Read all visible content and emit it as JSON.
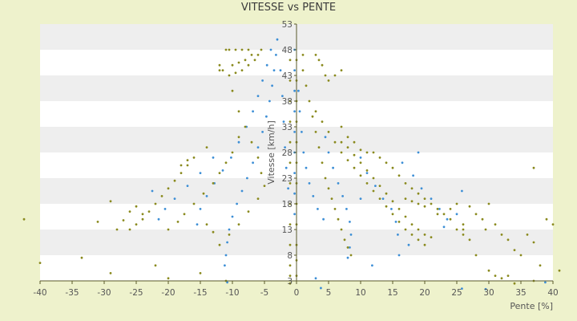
{
  "chart_data": {
    "type": "scatter",
    "title": "VITESSE vs PENTE",
    "xlabel": "Pente [%]",
    "ylabel": "Vitesse [km/h]",
    "xlim": [
      -40,
      40
    ],
    "ylim": [
      3,
      53
    ],
    "x_ticks": [
      -40,
      -35,
      -30,
      -25,
      -20,
      -15,
      -10,
      -5,
      0,
      5,
      10,
      15,
      20,
      25,
      30,
      35,
      40
    ],
    "y_ticks": [
      3,
      8,
      13,
      18,
      23,
      28,
      33,
      38,
      43,
      48,
      53
    ],
    "grid": "horizontal bands",
    "legend": "none",
    "colors": {
      "series_blue": "#3d8fd6",
      "series_olive": "#8a8a1e",
      "band": "#eeeeee",
      "plot_bg": "#ffffff",
      "page_bg": "#eef2cc",
      "axis": "#5a5a2a"
    },
    "series": [
      {
        "color": "#3d8fd6",
        "points": [
          [
            -3,
            50
          ],
          [
            -3.2,
            47
          ],
          [
            -3.5,
            44
          ],
          [
            -3.8,
            41
          ],
          [
            -4.2,
            38
          ],
          [
            -4.7,
            35
          ],
          [
            -5.3,
            32
          ],
          [
            -6,
            29
          ],
          [
            -6.8,
            26
          ],
          [
            -7.7,
            23
          ],
          [
            -8.5,
            20.5
          ],
          [
            -9.3,
            18
          ],
          [
            -10,
            15.5
          ],
          [
            -10.5,
            13
          ],
          [
            -10.8,
            10.5
          ],
          [
            -11,
            8
          ],
          [
            -11.2,
            6
          ],
          [
            -10.8,
            2.7
          ],
          [
            -4,
            48
          ],
          [
            -4.6,
            45
          ],
          [
            -5.3,
            42
          ],
          [
            -6,
            39
          ],
          [
            -6.8,
            36
          ],
          [
            -7.8,
            33
          ],
          [
            -9,
            30
          ],
          [
            -10.2,
            27
          ],
          [
            -11.5,
            24.5
          ],
          [
            -12.8,
            22
          ],
          [
            -14,
            19.5
          ],
          [
            -15,
            17
          ],
          [
            -15.5,
            14
          ],
          [
            -13,
            27
          ],
          [
            -15,
            24
          ],
          [
            -17,
            21.5
          ],
          [
            -19,
            19
          ],
          [
            -20.5,
            17
          ],
          [
            -21.5,
            15
          ],
          [
            -22.5,
            20.5
          ],
          [
            -2.5,
            44
          ],
          [
            -2.2,
            39
          ],
          [
            -2,
            34
          ],
          [
            -1.8,
            29
          ],
          [
            -1.6,
            25
          ],
          [
            -1.3,
            21
          ],
          [
            -0.3,
            48
          ],
          [
            -0.3,
            44
          ],
          [
            -0.3,
            40
          ],
          [
            -0.3,
            36
          ],
          [
            -0.3,
            32
          ],
          [
            -0.3,
            28
          ],
          [
            -0.3,
            24
          ],
          [
            -0.3,
            20
          ],
          [
            -0.3,
            16
          ],
          [
            0.3,
            40
          ],
          [
            0.5,
            36
          ],
          [
            0.8,
            32
          ],
          [
            1.1,
            28
          ],
          [
            1.5,
            25
          ],
          [
            2,
            22
          ],
          [
            2.6,
            19.5
          ],
          [
            3.3,
            17
          ],
          [
            4.2,
            15
          ],
          [
            4.5,
            31
          ],
          [
            5,
            28
          ],
          [
            5.7,
            25
          ],
          [
            6.5,
            22
          ],
          [
            7.2,
            19.5
          ],
          [
            7.8,
            17
          ],
          [
            8.3,
            14.5
          ],
          [
            8.5,
            12
          ],
          [
            8.3,
            9.5
          ],
          [
            8,
            7.5
          ],
          [
            10,
            27
          ],
          [
            11,
            24
          ],
          [
            12.3,
            21.5
          ],
          [
            13.5,
            19
          ],
          [
            14.8,
            17
          ],
          [
            15.5,
            14.5
          ],
          [
            15.8,
            12
          ],
          [
            16,
            8
          ],
          [
            11.8,
            6
          ],
          [
            16.5,
            26
          ],
          [
            18.2,
            23.5
          ],
          [
            19.5,
            21
          ],
          [
            21,
            19
          ],
          [
            22.3,
            17
          ],
          [
            23.5,
            15
          ],
          [
            25,
            16
          ],
          [
            23,
            13.5
          ],
          [
            3,
            3.5
          ],
          [
            3.8,
            1.6
          ],
          [
            25.8,
            1.5
          ],
          [
            29.5,
            1.4
          ],
          [
            38.8,
            2.7
          ],
          [
            25.8,
            20.5
          ],
          [
            19,
            28
          ],
          [
            10,
            19
          ],
          [
            17.5,
            10
          ]
        ]
      },
      {
        "color": "#8a8a1e",
        "points": [
          [
            -11,
            48
          ],
          [
            -10.5,
            48
          ],
          [
            -9.5,
            48
          ],
          [
            -8.5,
            48
          ],
          [
            -7.5,
            48
          ],
          [
            -7,
            47
          ],
          [
            -8,
            46
          ],
          [
            -9,
            45.5
          ],
          [
            -10,
            45
          ],
          [
            -11.5,
            44
          ],
          [
            -10.5,
            43
          ],
          [
            -9.5,
            43.5
          ],
          [
            -8.5,
            44
          ],
          [
            -7.5,
            45
          ],
          [
            -6.5,
            46
          ],
          [
            -6,
            47
          ],
          [
            -5.5,
            48
          ],
          [
            -12,
            44
          ],
          [
            -12,
            45
          ],
          [
            -10,
            40
          ],
          [
            -9,
            36
          ],
          [
            -8,
            33
          ],
          [
            -7,
            30
          ],
          [
            -6,
            27
          ],
          [
            -5.5,
            24
          ],
          [
            -5,
            21.5
          ],
          [
            -6,
            19
          ],
          [
            -7.5,
            16.5
          ],
          [
            -9,
            14
          ],
          [
            -10.5,
            12
          ],
          [
            -12,
            10
          ],
          [
            -13,
            12.5
          ],
          [
            -14,
            14
          ],
          [
            -9,
            31
          ],
          [
            -10,
            28
          ],
          [
            -11,
            26
          ],
          [
            -12,
            24
          ],
          [
            -13,
            22
          ],
          [
            -14.5,
            20
          ],
          [
            -16,
            18
          ],
          [
            -17.5,
            16
          ],
          [
            -18.5,
            14.5
          ],
          [
            -20,
            13
          ],
          [
            -14,
            29
          ],
          [
            -16,
            27
          ],
          [
            -17,
            25.5
          ],
          [
            -18,
            24
          ],
          [
            -19,
            22.5
          ],
          [
            -20,
            21
          ],
          [
            -21,
            19.5
          ],
          [
            -22,
            18
          ],
          [
            -23,
            16.5
          ],
          [
            -24,
            15
          ],
          [
            -25,
            14
          ],
          [
            -26,
            13
          ],
          [
            -17,
            26.5
          ],
          [
            -18,
            25.5
          ],
          [
            -24,
            16
          ],
          [
            -25,
            17.5
          ],
          [
            -26,
            16.5
          ],
          [
            -27,
            14.8
          ],
          [
            -28,
            13
          ],
          [
            -29,
            18.5
          ],
          [
            -31,
            14.5
          ],
          [
            -33.5,
            7.5
          ],
          [
            -40,
            6.5
          ],
          [
            -42.5,
            15
          ],
          [
            -29,
            4.5
          ],
          [
            -15,
            4.5
          ],
          [
            -20,
            3.5
          ],
          [
            -22,
            6
          ],
          [
            -11,
            3
          ],
          [
            -1,
            46
          ],
          [
            -1,
            42
          ],
          [
            -1,
            38
          ],
          [
            -1,
            34
          ],
          [
            -1,
            30
          ],
          [
            -1,
            26
          ],
          [
            -1,
            22
          ],
          [
            -1,
            18
          ],
          [
            -1,
            14
          ],
          [
            -1,
            10
          ],
          [
            -1,
            6
          ],
          [
            -1,
            4
          ],
          [
            -1,
            2.5
          ],
          [
            0,
            46
          ],
          [
            0,
            42
          ],
          [
            0,
            38
          ],
          [
            0,
            34
          ],
          [
            0,
            30
          ],
          [
            0,
            26
          ],
          [
            0,
            22
          ],
          [
            0,
            18
          ],
          [
            0,
            14
          ],
          [
            0,
            10
          ],
          [
            0,
            7
          ],
          [
            0,
            4
          ],
          [
            1,
            47
          ],
          [
            1,
            44
          ],
          [
            1.5,
            41
          ],
          [
            2,
            38
          ],
          [
            2.5,
            35
          ],
          [
            3,
            32
          ],
          [
            3.5,
            29
          ],
          [
            4,
            26
          ],
          [
            4.5,
            23
          ],
          [
            5,
            21
          ],
          [
            5.5,
            19
          ],
          [
            6,
            17
          ],
          [
            6.5,
            15
          ],
          [
            7,
            13
          ],
          [
            7.5,
            11
          ],
          [
            8,
            9.5
          ],
          [
            8.5,
            8
          ],
          [
            3,
            47
          ],
          [
            3.5,
            46
          ],
          [
            4,
            45
          ],
          [
            4.5,
            43
          ],
          [
            5,
            42
          ],
          [
            6,
            43
          ],
          [
            7,
            44
          ],
          [
            3,
            36
          ],
          [
            4,
            34
          ],
          [
            5,
            32
          ],
          [
            6,
            30
          ],
          [
            7,
            28
          ],
          [
            8,
            26.5
          ],
          [
            9,
            25
          ],
          [
            10,
            23.5
          ],
          [
            11,
            22
          ],
          [
            12,
            20.5
          ],
          [
            13,
            19
          ],
          [
            14,
            17.5
          ],
          [
            15,
            16
          ],
          [
            16,
            14.5
          ],
          [
            17,
            13
          ],
          [
            18,
            12
          ],
          [
            19,
            11
          ],
          [
            20,
            10
          ],
          [
            7,
            30
          ],
          [
            8,
            29
          ],
          [
            9,
            27.5
          ],
          [
            10,
            26
          ],
          [
            11,
            24.5
          ],
          [
            12,
            23
          ],
          [
            13,
            21.5
          ],
          [
            14,
            20
          ],
          [
            15,
            18.5
          ],
          [
            16,
            17
          ],
          [
            17,
            15.5
          ],
          [
            18,
            14
          ],
          [
            19,
            13
          ],
          [
            20,
            12
          ],
          [
            21,
            11.5
          ],
          [
            7,
            33
          ],
          [
            8,
            31
          ],
          [
            9,
            30
          ],
          [
            10,
            28.5
          ],
          [
            11,
            28
          ],
          [
            12,
            28
          ],
          [
            13,
            27
          ],
          [
            14,
            26
          ],
          [
            15,
            25
          ],
          [
            16,
            23.5
          ],
          [
            17,
            22
          ],
          [
            18,
            21
          ],
          [
            19,
            20
          ],
          [
            20,
            19
          ],
          [
            21,
            18
          ],
          [
            22,
            17
          ],
          [
            23,
            16
          ],
          [
            24,
            15
          ],
          [
            25,
            13
          ],
          [
            26,
            12
          ],
          [
            27,
            11
          ],
          [
            17,
            19
          ],
          [
            18,
            18.5
          ],
          [
            19,
            18
          ],
          [
            20,
            17.5
          ],
          [
            22,
            16
          ],
          [
            24,
            17
          ],
          [
            26,
            14
          ],
          [
            27,
            17.5
          ],
          [
            28,
            16
          ],
          [
            29,
            15
          ],
          [
            29.5,
            13
          ],
          [
            30,
            18
          ],
          [
            31,
            14
          ],
          [
            32,
            12
          ],
          [
            33,
            11
          ],
          [
            34,
            9
          ],
          [
            35,
            8
          ],
          [
            36,
            12
          ],
          [
            37,
            10.5
          ],
          [
            28,
            8
          ],
          [
            30,
            5
          ],
          [
            31,
            4
          ],
          [
            32,
            3.5
          ],
          [
            33,
            4
          ],
          [
            34,
            2.5
          ],
          [
            37,
            3
          ],
          [
            38,
            6
          ],
          [
            39,
            15
          ],
          [
            40,
            14
          ],
          [
            41,
            5
          ],
          [
            37,
            25
          ],
          [
            25,
            18
          ],
          [
            26,
            13
          ]
        ]
      }
    ]
  }
}
